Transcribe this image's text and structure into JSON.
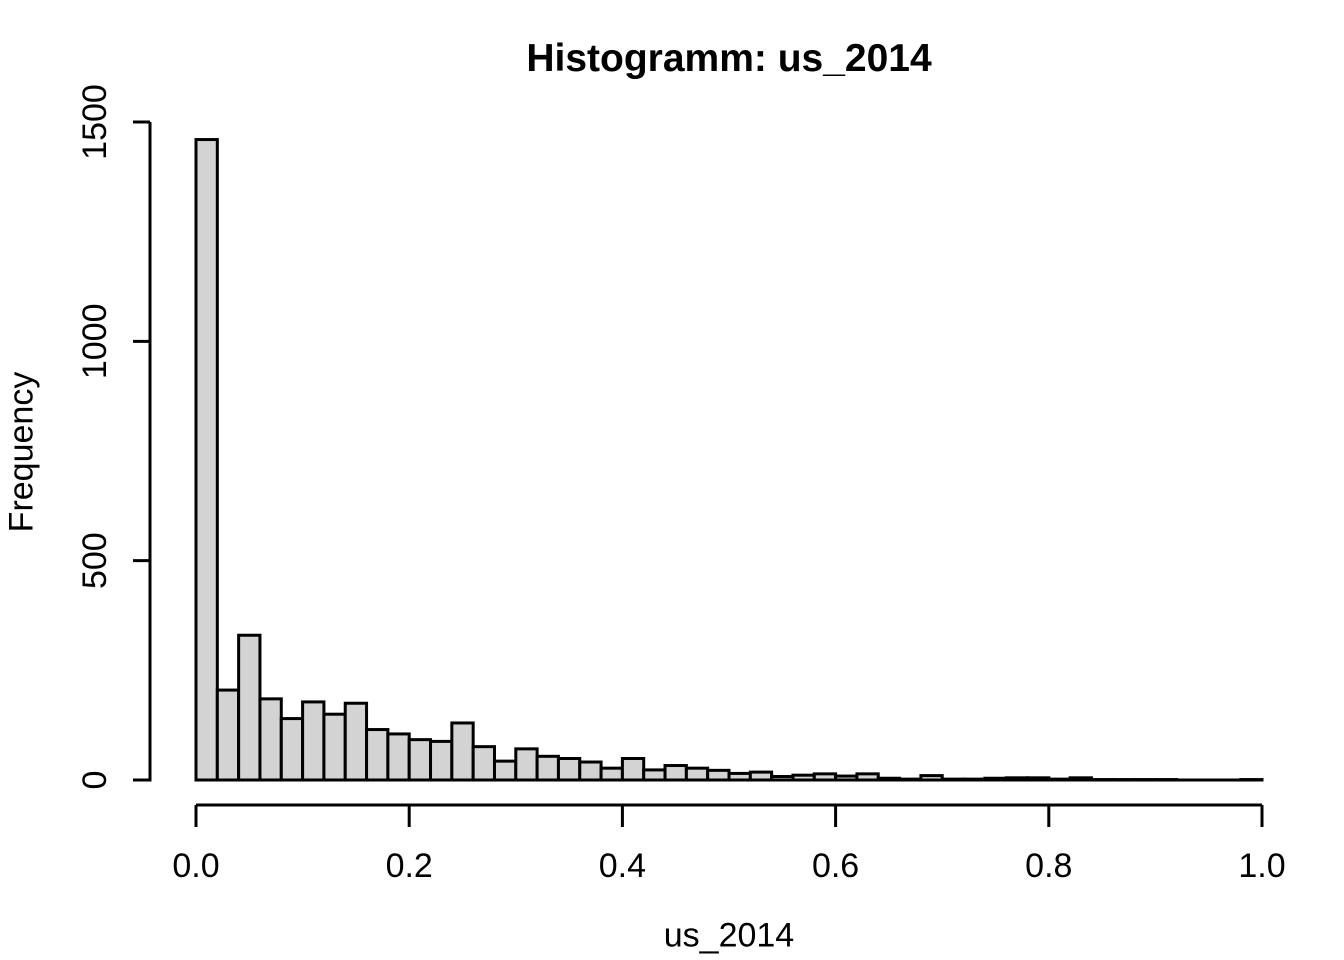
{
  "figure": {
    "title": "Histogramm: us_2014",
    "xlabel": "us_2014",
    "ylabel": "Frequency"
  },
  "chart_data": {
    "type": "bar",
    "variant": "histogram",
    "title": "Histogramm: us_2014",
    "xlabel": "us_2014",
    "ylabel": "Frequency",
    "xlim": [
      0,
      1
    ],
    "ylim": [
      0,
      1500
    ],
    "bin_start": 0,
    "bin_width": 0.02,
    "counts": [
      1460,
      205,
      330,
      185,
      140,
      178,
      150,
      175,
      115,
      105,
      92,
      88,
      130,
      76,
      43,
      71,
      54,
      49,
      41,
      27,
      49,
      23,
      33,
      27,
      22,
      15,
      18,
      8,
      11,
      14,
      9,
      14,
      4,
      2,
      10,
      2,
      2,
      4,
      5,
      5,
      2,
      5,
      1,
      1,
      1,
      1,
      0,
      0,
      0,
      1
    ],
    "x_tick_values": [
      0,
      0.2,
      0.4,
      0.6,
      0.8,
      1.0
    ],
    "x_tick_labels": [
      "0.0",
      "0.2",
      "0.4",
      "0.6",
      "0.8",
      "1.0"
    ],
    "y_tick_values": [
      0,
      500,
      1000,
      1500
    ],
    "y_tick_labels": [
      "0",
      "500",
      "1000",
      "1500"
    ],
    "grid": false,
    "legend": false,
    "bar_fill": "#d3d3d3",
    "bar_stroke": "#000000",
    "axis_color": "#000000",
    "background": "#ffffff"
  }
}
